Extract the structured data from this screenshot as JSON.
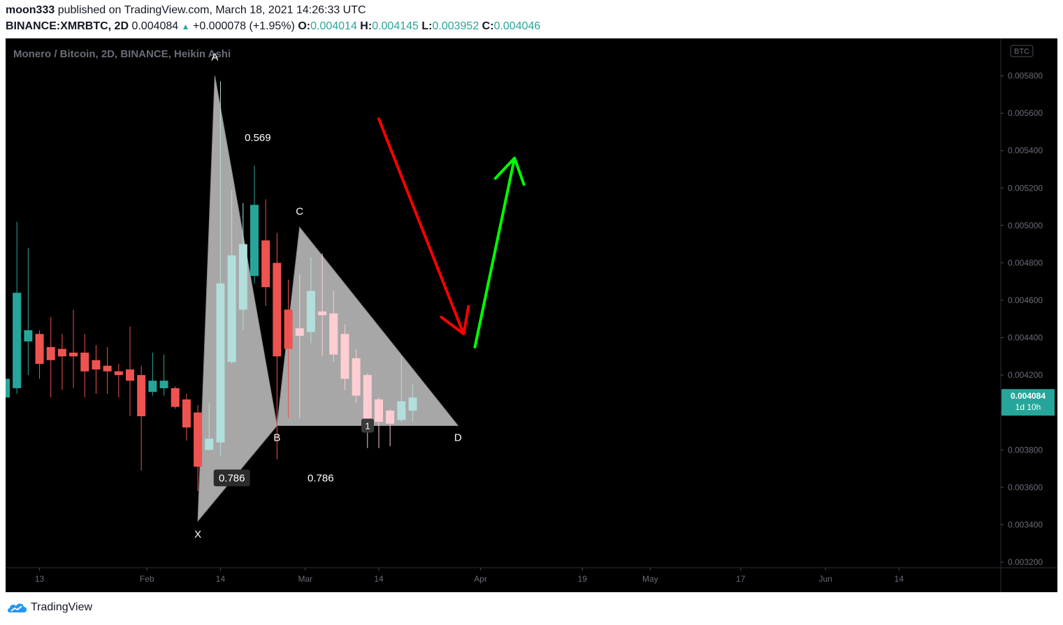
{
  "header": {
    "author": "moon333",
    "published_text": "published on TradingView.com, March 18, 2021 14:26:33 UTC",
    "symbol": "BINANCE:XMRBTC, 2D",
    "last": "0.004084",
    "change": "+0.000078 (+1.95%)",
    "o_label": "O:",
    "o": "0.004014",
    "h_label": "H:",
    "h": "0.004145",
    "l_label": "L:",
    "l": "0.003952",
    "c_label": "C:",
    "c": "0.004046"
  },
  "footer": {
    "brand": "TradingView"
  },
  "colors": {
    "bg": "#000000",
    "up": "#26a69a",
    "down": "#ef5350",
    "up_light": "#b2dfdb",
    "down_light": "#ffcdd2",
    "pattern_fill": "#b0b0b0",
    "arrow_down": "#ff0000",
    "arrow_up": "#00ff00",
    "price_badge": "#26a69a"
  },
  "chart_data": {
    "type": "candlestick",
    "title": "Monero / Bitcoin, 2D, BINANCE, Heikin Ashi",
    "currency_badge": "BTC",
    "y_ticks": [
      "0.005800",
      "0.005600",
      "0.005400",
      "0.005200",
      "0.005000",
      "0.004800",
      "0.004600",
      "0.004400",
      "0.004200",
      "0.004000",
      "0.003800",
      "0.003600",
      "0.003400",
      "0.003200"
    ],
    "y_tick_values": [
      0.0058,
      0.0056,
      0.0054,
      0.0052,
      0.005,
      0.0048,
      0.0046,
      0.0044,
      0.0042,
      0.004,
      0.0038,
      0.0036,
      0.0034,
      0.0032
    ],
    "ylim": [
      0.00317,
      0.006
    ],
    "x_ticks": [
      "13",
      "Feb",
      "14",
      "Mar",
      "14",
      "Apr",
      "19",
      "May",
      "17",
      "Jun",
      "14"
    ],
    "x_tick_dates": [
      "2021-01-13",
      "2021-02-01",
      "2021-02-14",
      "2021-03-01",
      "2021-03-14",
      "2021-04-01",
      "2021-04-19",
      "2021-05-01",
      "2021-05-17",
      "2021-06-01",
      "2021-06-14"
    ],
    "xlim": [
      "2021-01-07",
      "2021-07-02"
    ],
    "last_price": "0.004084",
    "countdown": "1d 10h",
    "candles": [
      {
        "date": "2021-01-07",
        "o": 0.00408,
        "h": 0.00418,
        "l": 0.00408,
        "c": 0.00418,
        "s": "u"
      },
      {
        "date": "2021-01-09",
        "o": 0.00413,
        "h": 0.00502,
        "l": 0.0041,
        "c": 0.00464,
        "s": "u"
      },
      {
        "date": "2021-01-11",
        "o": 0.00438,
        "h": 0.00488,
        "l": 0.0042,
        "c": 0.00444,
        "s": "u"
      },
      {
        "date": "2021-01-13",
        "o": 0.00442,
        "h": 0.00444,
        "l": 0.00418,
        "c": 0.00426,
        "s": "d"
      },
      {
        "date": "2021-01-15",
        "o": 0.00435,
        "h": 0.00451,
        "l": 0.00408,
        "c": 0.00428,
        "s": "d"
      },
      {
        "date": "2021-01-17",
        "o": 0.00434,
        "h": 0.00442,
        "l": 0.00412,
        "c": 0.0043,
        "s": "d"
      },
      {
        "date": "2021-01-19",
        "o": 0.00432,
        "h": 0.00455,
        "l": 0.00413,
        "c": 0.0043,
        "s": "d"
      },
      {
        "date": "2021-01-21",
        "o": 0.00432,
        "h": 0.00442,
        "l": 0.00408,
        "c": 0.00422,
        "s": "d"
      },
      {
        "date": "2021-01-23",
        "o": 0.00428,
        "h": 0.00436,
        "l": 0.0041,
        "c": 0.00423,
        "s": "d"
      },
      {
        "date": "2021-01-25",
        "o": 0.00425,
        "h": 0.00435,
        "l": 0.0041,
        "c": 0.00422,
        "s": "d"
      },
      {
        "date": "2021-01-27",
        "o": 0.00422,
        "h": 0.00426,
        "l": 0.00408,
        "c": 0.0042,
        "s": "d"
      },
      {
        "date": "2021-01-29",
        "o": 0.00423,
        "h": 0.00446,
        "l": 0.00398,
        "c": 0.00417,
        "s": "d"
      },
      {
        "date": "2021-01-31",
        "o": 0.0042,
        "h": 0.00425,
        "l": 0.00369,
        "c": 0.00398,
        "s": "d"
      },
      {
        "date": "2021-02-02",
        "o": 0.00411,
        "h": 0.00432,
        "l": 0.00409,
        "c": 0.00417,
        "s": "u"
      },
      {
        "date": "2021-02-04",
        "o": 0.00413,
        "h": 0.00431,
        "l": 0.00409,
        "c": 0.00417,
        "s": "u"
      },
      {
        "date": "2021-02-06",
        "o": 0.00413,
        "h": 0.00414,
        "l": 0.00402,
        "c": 0.00403,
        "s": "d"
      },
      {
        "date": "2021-02-08",
        "o": 0.00407,
        "h": 0.0041,
        "l": 0.00385,
        "c": 0.00392,
        "s": "d"
      },
      {
        "date": "2021-02-10",
        "o": 0.004,
        "h": 0.00404,
        "l": 0.00358,
        "c": 0.00371,
        "s": "d"
      },
      {
        "date": "2021-02-12",
        "o": 0.0038,
        "h": 0.00405,
        "l": 0.0038,
        "c": 0.00386,
        "s": "ul"
      },
      {
        "date": "2021-02-14",
        "o": 0.00384,
        "h": 0.00577,
        "l": 0.00377,
        "c": 0.00469,
        "s": "ul"
      },
      {
        "date": "2021-02-16",
        "o": 0.00427,
        "h": 0.00519,
        "l": 0.00426,
        "c": 0.00484,
        "s": "ul"
      },
      {
        "date": "2021-02-18",
        "o": 0.00455,
        "h": 0.00512,
        "l": 0.00444,
        "c": 0.0049,
        "s": "ul"
      },
      {
        "date": "2021-02-20",
        "o": 0.00473,
        "h": 0.00532,
        "l": 0.00469,
        "c": 0.00511,
        "s": "u"
      },
      {
        "date": "2021-02-22",
        "o": 0.00492,
        "h": 0.00514,
        "l": 0.00457,
        "c": 0.00467,
        "s": "d"
      },
      {
        "date": "2021-02-24",
        "o": 0.0048,
        "h": 0.00496,
        "l": 0.00375,
        "c": 0.0043,
        "s": "d"
      },
      {
        "date": "2021-02-26",
        "o": 0.00455,
        "h": 0.00471,
        "l": 0.00397,
        "c": 0.00434,
        "s": "d"
      },
      {
        "date": "2021-02-28",
        "o": 0.00441,
        "h": 0.00474,
        "l": 0.00397,
        "c": 0.00445,
        "s": "dl"
      },
      {
        "date": "2021-03-02",
        "o": 0.00443,
        "h": 0.00483,
        "l": 0.00437,
        "c": 0.00465,
        "s": "ul"
      },
      {
        "date": "2021-03-04",
        "o": 0.00454,
        "h": 0.00485,
        "l": 0.0043,
        "c": 0.00452,
        "s": "dl"
      },
      {
        "date": "2021-03-06",
        "o": 0.00453,
        "h": 0.00465,
        "l": 0.00427,
        "c": 0.00431,
        "s": "dl"
      },
      {
        "date": "2021-03-08",
        "o": 0.00442,
        "h": 0.00447,
        "l": 0.00412,
        "c": 0.00418,
        "s": "dl"
      },
      {
        "date": "2021-03-10",
        "o": 0.00429,
        "h": 0.00434,
        "l": 0.00405,
        "c": 0.00409,
        "s": "dl"
      },
      {
        "date": "2021-03-12",
        "o": 0.0042,
        "h": 0.00421,
        "l": 0.00381,
        "c": 0.00395,
        "s": "dl"
      },
      {
        "date": "2021-03-14",
        "o": 0.00407,
        "h": 0.00408,
        "l": 0.00381,
        "c": 0.00395,
        "s": "dl"
      },
      {
        "date": "2021-03-16",
        "o": 0.00401,
        "h": 0.00402,
        "l": 0.00382,
        "c": 0.00394,
        "s": "dl"
      },
      {
        "date": "2021-03-18",
        "o": 0.00396,
        "h": 0.0043,
        "l": 0.00395,
        "c": 0.00406,
        "s": "ul"
      },
      {
        "date": "2021-03-20",
        "o": 0.00401,
        "h": 0.00415,
        "l": 0.00395,
        "c": 0.00408,
        "s": "ul"
      }
    ],
    "pattern": {
      "points": [
        {
          "label": "X",
          "date": "2021-02-10",
          "price": 0.00342
        },
        {
          "label": "A",
          "date": "2021-02-13",
          "price": 0.0058
        },
        {
          "label": "B",
          "date": "2021-02-24",
          "price": 0.00393
        },
        {
          "label": "C",
          "date": "2021-02-28",
          "price": 0.00499
        },
        {
          "label": "D",
          "date": "2021-03-28",
          "price": 0.00393
        }
      ],
      "ratios": [
        "0.569",
        "0.786",
        "0.786"
      ],
      "marker": "1"
    },
    "arrows": [
      {
        "color": "red",
        "from": {
          "date": "2021-03-14",
          "price": 0.00557
        },
        "to": {
          "date": "2021-03-29",
          "price": 0.00442
        }
      },
      {
        "color": "green",
        "from": {
          "date": "2021-03-31",
          "price": 0.00435
        },
        "to": {
          "date": "2021-04-07",
          "price": 0.00536
        }
      }
    ]
  }
}
